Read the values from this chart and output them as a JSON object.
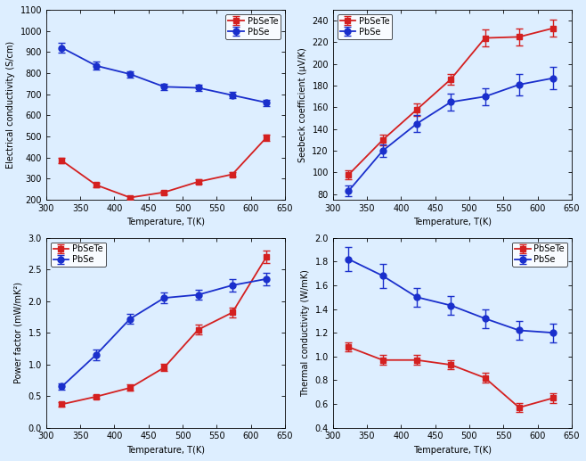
{
  "temp": [
    323,
    373,
    423,
    473,
    523,
    573,
    623
  ],
  "elec_PbSeTe": [
    385,
    270,
    210,
    235,
    285,
    320,
    495
  ],
  "elec_PbSeTe_err": [
    12,
    10,
    8,
    8,
    10,
    12,
    15
  ],
  "elec_PbSe": [
    920,
    835,
    795,
    735,
    730,
    695,
    660
  ],
  "elec_PbSe_err": [
    22,
    18,
    15,
    15,
    15,
    15,
    15
  ],
  "seebeck_PbSeTe": [
    98,
    130,
    158,
    186,
    224,
    225,
    233
  ],
  "seebeck_PbSeTe_err": [
    4,
    5,
    6,
    5,
    8,
    8,
    8
  ],
  "seebeck_PbSe": [
    83,
    120,
    145,
    165,
    170,
    181,
    187
  ],
  "seebeck_PbSe_err": [
    5,
    6,
    8,
    8,
    8,
    10,
    10
  ],
  "pf_PbSeTe": [
    0.37,
    0.49,
    0.63,
    0.95,
    1.55,
    1.82,
    2.7
  ],
  "pf_PbSeTe_err": [
    0.03,
    0.03,
    0.05,
    0.06,
    0.08,
    0.08,
    0.1
  ],
  "pf_PbSe": [
    0.65,
    1.15,
    1.72,
    2.05,
    2.1,
    2.25,
    2.35
  ],
  "pf_PbSe_err": [
    0.05,
    0.08,
    0.08,
    0.08,
    0.08,
    0.1,
    0.1
  ],
  "kappa_PbSeTe": [
    1.08,
    0.97,
    0.97,
    0.93,
    0.82,
    0.57,
    0.65
  ],
  "kappa_PbSeTe_err": [
    0.04,
    0.04,
    0.04,
    0.04,
    0.04,
    0.04,
    0.04
  ],
  "kappa_PbSe": [
    1.82,
    1.68,
    1.5,
    1.43,
    1.32,
    1.22,
    1.2
  ],
  "kappa_PbSe_err": [
    0.1,
    0.1,
    0.08,
    0.08,
    0.08,
    0.08,
    0.08
  ],
  "red": "#d42020",
  "blue": "#1a2fcc",
  "marker_red": "s",
  "marker_blue": "o",
  "linewidth": 1.3,
  "markersize": 5,
  "capsize": 3,
  "elinewidth": 1.0,
  "xlabel": "Temperature, T(K)",
  "ylabel_elec": "Electrical conductivity (S/cm)",
  "ylabel_seebeck": "Seebeck coefficient (μV/K)",
  "ylabel_pf": "Power factor (mW/mK²)",
  "ylabel_kappa": "Thermal conductivity (W/mK)",
  "label_PbSeTe": "PbSeTe",
  "label_PbSe": "PbSe",
  "bg_color": "#ddeeff",
  "xlim": [
    305,
    648
  ],
  "xticks": [
    300,
    350,
    400,
    450,
    500,
    550,
    600,
    650
  ],
  "elec_ylim": [
    200,
    1100
  ],
  "elec_yticks": [
    200,
    300,
    400,
    500,
    600,
    700,
    800,
    900,
    1000,
    1100
  ],
  "seebeck_ylim": [
    75,
    250
  ],
  "seebeck_yticks": [
    80,
    100,
    120,
    140,
    160,
    180,
    200,
    220,
    240
  ],
  "pf_ylim": [
    0.0,
    3.0
  ],
  "pf_yticks": [
    0.0,
    0.5,
    1.0,
    1.5,
    2.0,
    2.5,
    3.0
  ],
  "kappa_ylim": [
    0.4,
    2.0
  ],
  "kappa_yticks": [
    0.4,
    0.6,
    0.8,
    1.0,
    1.2,
    1.4,
    1.6,
    1.8,
    2.0
  ],
  "tick_fontsize": 7,
  "label_fontsize": 7,
  "legend_fontsize": 7
}
